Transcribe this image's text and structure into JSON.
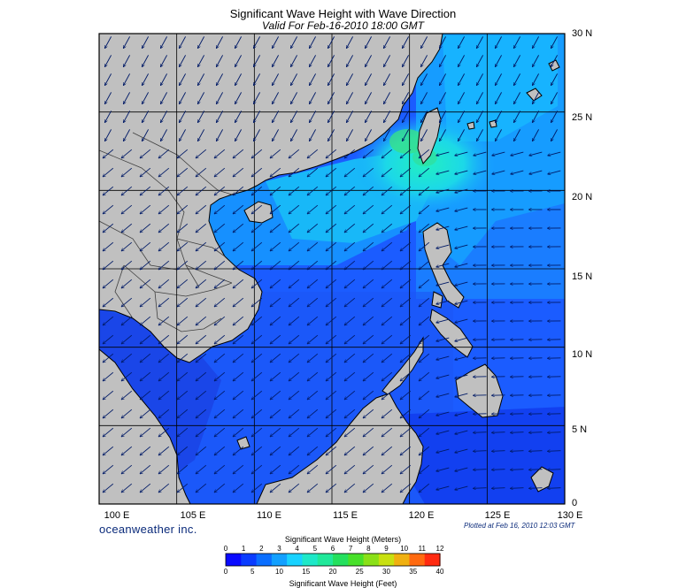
{
  "title": "Significant Wave Height with Wave Direction",
  "subtitle": "Valid For Feb-16-2010 18:00 GMT",
  "map": {
    "lon_range": [
      100,
      130
    ],
    "lat_range": [
      0,
      30
    ],
    "lat_labels": [
      "30 N",
      "25 N",
      "20 N",
      "15 N",
      "10 N",
      "5 N",
      "0"
    ],
    "lon_labels": [
      "100 E",
      "105 E",
      "110 E",
      "115 E",
      "120 E",
      "125 E",
      "130 E"
    ],
    "grid_step_deg": 5,
    "colors": {
      "land": "#c0c0c0",
      "deep": "#0a3cff",
      "mid": "#1468ff",
      "light": "#19a8ff",
      "cyan": "#1ee8d8",
      "green": "#3cd86e"
    }
  },
  "brand": "oceanweather inc.",
  "plotted": "Plotted at Feb 16, 2010 12:03 GMT",
  "colorbar": {
    "title_meters": "Significant Wave Height (Meters)",
    "title_feet": "Significant Wave Height (Feet)",
    "meters_ticks": [
      "0",
      "1",
      "2",
      "3",
      "4",
      "5",
      "6",
      "7",
      "8",
      "9",
      "10",
      "11",
      "12"
    ],
    "feet_ticks": [
      "0",
      "5",
      "10",
      "15",
      "20",
      "25",
      "30",
      "35",
      "40"
    ],
    "colors": [
      "#0a0aff",
      "#0a3cff",
      "#0a6eff",
      "#12a0ff",
      "#18d2ff",
      "#1ee8c8",
      "#20e89a",
      "#24e05e",
      "#48e02a",
      "#8ae018",
      "#c8e010",
      "#f0b010",
      "#ff6a10",
      "#ff2a10"
    ]
  }
}
